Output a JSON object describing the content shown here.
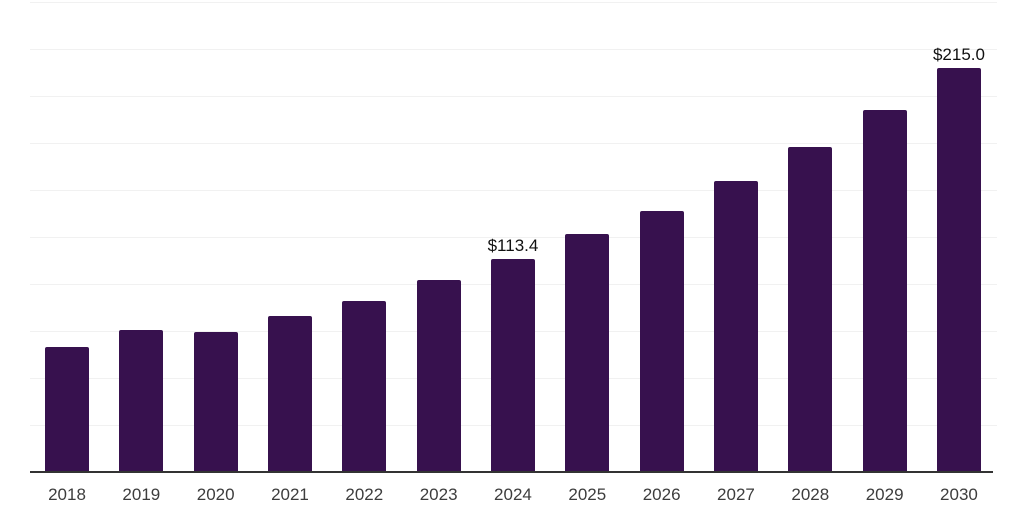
{
  "chart_data": {
    "type": "bar",
    "title": "",
    "xlabel": "",
    "ylabel": "",
    "categories": [
      "2018",
      "2019",
      "2020",
      "2021",
      "2022",
      "2023",
      "2024",
      "2025",
      "2026",
      "2027",
      "2028",
      "2029",
      "2030"
    ],
    "values": [
      66.4,
      75.5,
      74.6,
      83.1,
      91.0,
      102.1,
      113.4,
      126.8,
      138.9,
      154.8,
      172.9,
      192.6,
      215.0
    ],
    "data_labels": [
      "",
      "",
      "",
      "",
      "",
      "",
      "$113.4",
      "",
      "",
      "",
      "",
      "",
      "$215.0"
    ],
    "ylim": [
      0,
      250
    ],
    "gridline_step": 25,
    "grid": "horizontal",
    "legend_position": "none",
    "y_tick_labels_visible": false,
    "colors": {
      "bar": "#37114e",
      "gridline": "#f1f1f1",
      "axis_line": "#333333",
      "tick_label": "#3d3d3d",
      "data_label": "#111111",
      "background": "#ffffff"
    }
  }
}
